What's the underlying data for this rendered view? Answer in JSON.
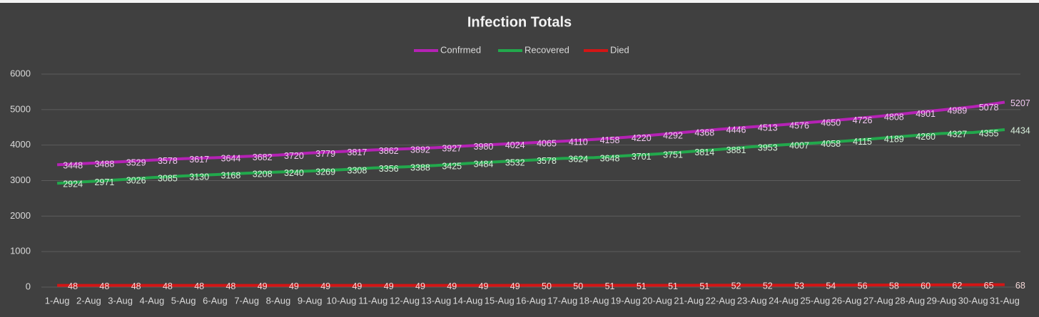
{
  "chart_data": {
    "type": "line",
    "title": "Infection Totals",
    "categories": [
      "1-Aug",
      "2-Aug",
      "3-Aug",
      "4-Aug",
      "5-Aug",
      "6-Aug",
      "7-Aug",
      "8-Aug",
      "9-Aug",
      "10-Aug",
      "11-Aug",
      "12-Aug",
      "13-Aug",
      "14-Aug",
      "15-Aug",
      "16-Aug",
      "17-Aug",
      "18-Aug",
      "19-Aug",
      "20-Aug",
      "21-Aug",
      "22-Aug",
      "23-Aug",
      "24-Aug",
      "25-Aug",
      "26-Aug",
      "27-Aug",
      "28-Aug",
      "29-Aug",
      "30-Aug",
      "31-Aug"
    ],
    "series": [
      {
        "name": "Confrmed",
        "color": "#b522b5",
        "values": [
          3448,
          3488,
          3529,
          3578,
          3617,
          3644,
          3682,
          3720,
          3779,
          3817,
          3862,
          3892,
          3927,
          3980,
          4024,
          4065,
          4110,
          4158,
          4220,
          4292,
          4368,
          4446,
          4513,
          4576,
          4650,
          4726,
          4808,
          4901,
          4989,
          5078,
          5207
        ]
      },
      {
        "name": "Recovered",
        "color": "#22a84c",
        "values": [
          2924,
          2971,
          3026,
          3085,
          3130,
          3168,
          3208,
          3240,
          3269,
          3308,
          3356,
          3388,
          3425,
          3484,
          3532,
          3578,
          3624,
          3648,
          3701,
          3751,
          3814,
          3881,
          3953,
          4007,
          4058,
          4115,
          4189,
          4260,
          4327,
          4355,
          4434
        ]
      },
      {
        "name": "Died",
        "color": "#d41515",
        "values": [
          48,
          48,
          48,
          48,
          48,
          48,
          49,
          49,
          49,
          49,
          49,
          49,
          49,
          49,
          49,
          50,
          50,
          51,
          51,
          51,
          51,
          52,
          52,
          53,
          54,
          56,
          58,
          60,
          62,
          65,
          68
        ]
      }
    ],
    "ylim": [
      0,
      6000
    ],
    "yticks": [
      0,
      1000,
      2000,
      3000,
      4000,
      5000,
      6000
    ],
    "grid": true,
    "legend": "top"
  }
}
